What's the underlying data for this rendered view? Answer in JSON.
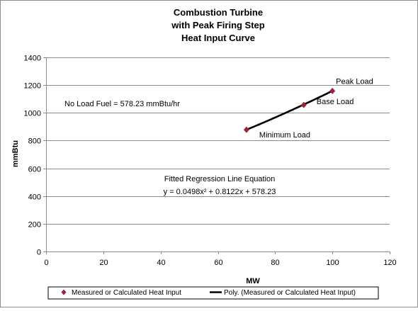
{
  "chart_data": {
    "type": "scatter",
    "title": [
      "Combustion Turbine",
      "with Peak Firing Step",
      "Heat Input Curve"
    ],
    "xlabel": "MW",
    "ylabel": "mmBtu",
    "xlim": [
      0,
      120
    ],
    "ylim": [
      0,
      1400
    ],
    "xticks": [
      0,
      20,
      40,
      60,
      80,
      100,
      120
    ],
    "yticks": [
      0,
      200,
      400,
      600,
      800,
      1000,
      1200,
      1400
    ],
    "grid": "horizontal",
    "series": [
      {
        "name": "Measured or Calculated Heat Input",
        "kind": "markers",
        "marker": "diamond",
        "color": "#A0203A",
        "x": [
          70,
          90,
          100
        ],
        "y": [
          878,
          1057,
          1158
        ],
        "point_labels": [
          "Minimum Load",
          "Base Load",
          "Peak Load"
        ]
      },
      {
        "name": "Poly. (Measured or Calculated Heat Input)",
        "kind": "trendline",
        "color": "#000000",
        "equation": {
          "a": 0.0498,
          "b": 0.8122,
          "c": 578.23
        },
        "x_range": [
          70,
          100
        ]
      }
    ],
    "annotations": {
      "no_load_fuel": "No Load Fuel = 578.23 mmBtu/hr",
      "fit_title": "Fitted Regression Line Equation",
      "fit_equation": "y = 0.0498x² + 0.8122x + 578.23"
    },
    "legend_position": "bottom"
  }
}
